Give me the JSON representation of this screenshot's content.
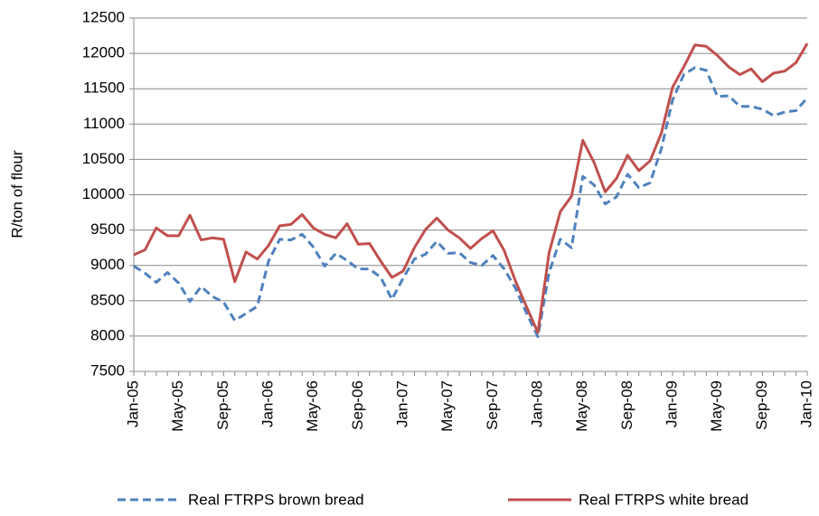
{
  "chart_data": {
    "type": "line",
    "y_label": "R/ton of flour",
    "categories": [
      "Jan-05",
      null,
      null,
      null,
      "May-05",
      null,
      null,
      null,
      "Sep-05",
      null,
      null,
      null,
      "Jan-06",
      null,
      null,
      null,
      "May-06",
      null,
      null,
      null,
      "Sep-06",
      null,
      null,
      null,
      "Jan-07",
      null,
      null,
      null,
      "May-07",
      null,
      null,
      null,
      "Sep-07",
      null,
      null,
      null,
      "Jan-08",
      null,
      null,
      null,
      "May-08",
      null,
      null,
      null,
      "Sep-08",
      null,
      null,
      null,
      "Jan-09",
      null,
      null,
      null,
      "May-09",
      null,
      null,
      null,
      "Sep-09",
      null,
      null,
      null,
      "Jan-10"
    ],
    "series": [
      {
        "name": "Real FTRPS brown bread",
        "color": "#4f81bd",
        "dashed": true,
        "values": [
          8990,
          8890,
          8760,
          8900,
          8750,
          8490,
          8700,
          8560,
          8480,
          8220,
          8320,
          8420,
          9060,
          9370,
          9360,
          9440,
          9260,
          8990,
          9170,
          9070,
          8950,
          8950,
          8830,
          8520,
          8820,
          9090,
          9160,
          9340,
          9170,
          9180,
          9040,
          9000,
          9140,
          8950,
          8680,
          8320,
          7990,
          8900,
          9370,
          9250,
          10260,
          10140,
          9870,
          9970,
          10290,
          10100,
          10170,
          10650,
          11340,
          11700,
          11800,
          11760,
          11390,
          11400,
          11250,
          11250,
          11210,
          11120,
          11170,
          11190,
          11370
        ]
      },
      {
        "name": "Real FTRPS white bread",
        "color": "#c0504d",
        "dashed": false,
        "values": [
          9150,
          9220,
          9530,
          9420,
          9420,
          9710,
          9360,
          9390,
          9370,
          8770,
          9190,
          9090,
          9280,
          9560,
          9580,
          9720,
          9530,
          9440,
          9390,
          9590,
          9300,
          9310,
          9060,
          8830,
          8920,
          9250,
          9510,
          9670,
          9500,
          9390,
          9240,
          9380,
          9490,
          9210,
          8780,
          8410,
          8050,
          9180,
          9760,
          9980,
          10770,
          10460,
          10040,
          10230,
          10560,
          10340,
          10480,
          10870,
          11520,
          11810,
          12120,
          12100,
          11970,
          11810,
          11700,
          11780,
          11600,
          11720,
          11750,
          11870,
          12140
        ]
      }
    ],
    "ylim": [
      7500,
      12500
    ],
    "yticks": [
      7500,
      8000,
      8500,
      9000,
      9500,
      10000,
      10500,
      11000,
      11500,
      12000,
      12500
    ],
    "grid": true,
    "legend": "bottom"
  }
}
